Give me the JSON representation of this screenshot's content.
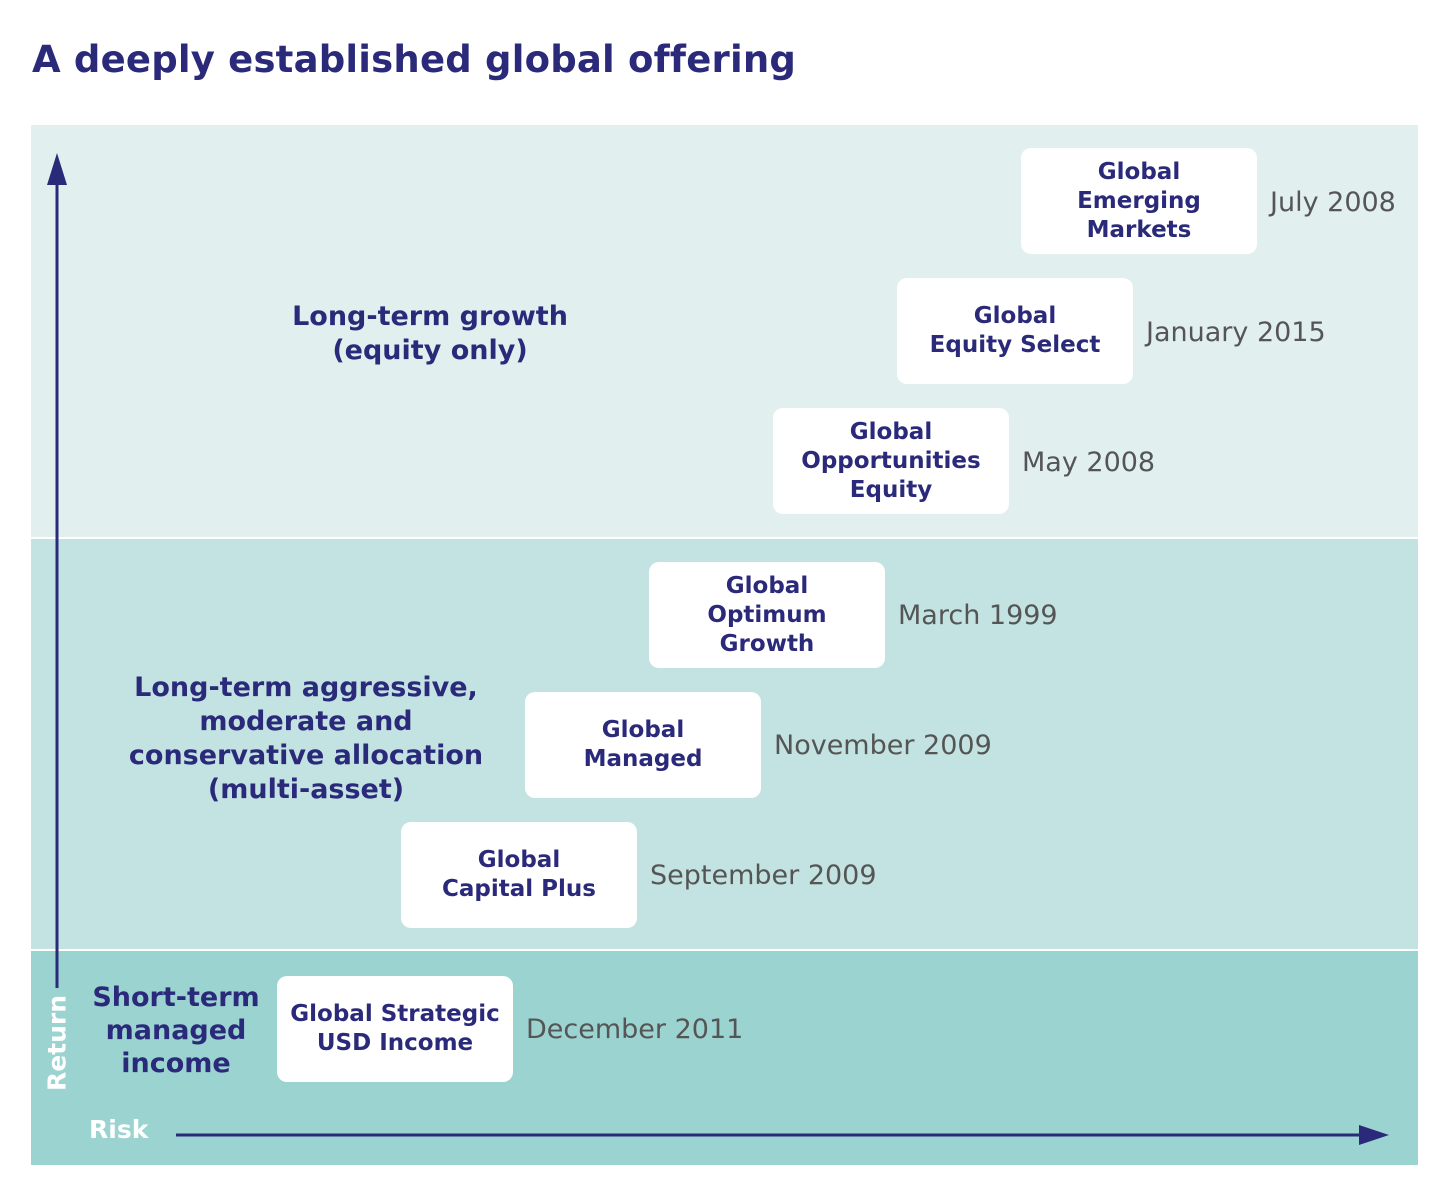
{
  "title": "A deeply established global offering",
  "axes": {
    "x_label": "Risk",
    "y_label": "Return"
  },
  "categories": [
    {
      "label": "Long-term growth\n(equity only)"
    },
    {
      "label": "Long-term aggressive,\nmoderate and\nconservative allocation\n(multi-asset)"
    },
    {
      "label": "Short-term\nmanaged\nincome"
    }
  ],
  "funds": [
    {
      "name": "Global\nEmerging\nMarkets",
      "date": "July 2008"
    },
    {
      "name": "Global\nEquity Select",
      "date": "January 2015"
    },
    {
      "name": "Global\nOpportunities\nEquity",
      "date": "May 2008"
    },
    {
      "name": "Global\nOptimum\nGrowth",
      "date": "March 1999"
    },
    {
      "name": "Global\nManaged",
      "date": "November 2009"
    },
    {
      "name": "Global\nCapital Plus",
      "date": "September 2009"
    },
    {
      "name": "Global Strategic\nUSD Income",
      "date": "December 2011"
    }
  ],
  "colors": {
    "text_primary": "#2b2a7a",
    "date_text": "#555555",
    "band_top": "#e1f0ef",
    "band_middle": "#c2e3e1",
    "band_bottom": "#9bd3d1",
    "card": "#ffffff",
    "axis": "#2b2a7a"
  }
}
